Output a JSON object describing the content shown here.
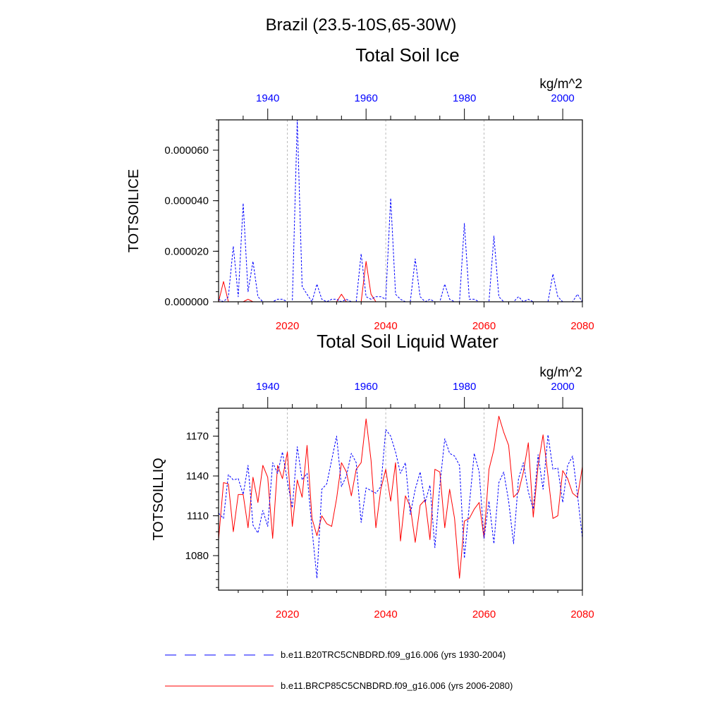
{
  "suptitle": "Brazil (23.5-10S,65-30W)",
  "colors": {
    "historical": "#0000ff",
    "future": "#ff0000",
    "axis": "#000000",
    "grid": "#aaaaaa"
  },
  "legend": {
    "items": [
      {
        "label": "b.e11.B20TRC5CNBDRD.f09_g16.006 (yrs 1930-2004)",
        "style": "dashed",
        "color": "#0000ff"
      },
      {
        "label": "b.e11.BRCP85C5CNBDRD.f09_g16.006 (yrs 2006-2080)",
        "style": "solid",
        "color": "#ff0000"
      }
    ]
  },
  "chart_data": [
    {
      "type": "line",
      "title": "Total Soil Ice",
      "units": "kg/m^2",
      "ylabel": "TOTSOILICE",
      "xlabel_bottom": "",
      "xlim_bottom": [
        2006,
        2080
      ],
      "xlim_top": [
        1930,
        2004
      ],
      "ylim": [
        0,
        7.2e-05
      ],
      "yticks": [
        0,
        2e-05,
        4e-05,
        6e-05
      ],
      "ytick_labels": [
        "0.000000",
        "0.000020",
        "0.000040",
        "0.000060"
      ],
      "xticks_bottom": [
        2020,
        2040,
        2060,
        2080
      ],
      "xtick_labels_bottom": [
        "2020",
        "2040",
        "2060",
        "2080"
      ],
      "xticks_top": [
        1940,
        1960,
        1980,
        2000
      ],
      "xtick_labels_top": [
        "1940",
        "1960",
        "1980",
        "2000"
      ],
      "grid_x": [
        2020,
        2040,
        2060
      ],
      "series": [
        {
          "name": "b.e11.B20TRC5CNBDRD.f09_g16.006 (yrs 1930-2004)",
          "axis": "top",
          "style": "dashed",
          "x": [
            1930,
            1931,
            1932,
            1933,
            1934,
            1935,
            1936,
            1937,
            1938,
            1939,
            1940,
            1941,
            1942,
            1943,
            1944,
            1945,
            1946,
            1947,
            1948,
            1949,
            1950,
            1951,
            1952,
            1953,
            1954,
            1955,
            1956,
            1957,
            1958,
            1959,
            1960,
            1961,
            1962,
            1963,
            1964,
            1965,
            1966,
            1967,
            1968,
            1969,
            1970,
            1971,
            1972,
            1973,
            1974,
            1975,
            1976,
            1977,
            1978,
            1979,
            1980,
            1981,
            1982,
            1983,
            1984,
            1985,
            1986,
            1987,
            1988,
            1989,
            1990,
            1991,
            1992,
            1993,
            1994,
            1995,
            1996,
            1997,
            1998,
            1999,
            2000,
            2001,
            2002,
            2003,
            2004
          ],
          "values": [
            1e-06,
            0,
            2e-06,
            2.2e-05,
            2e-06,
            3.9e-05,
            4e-06,
            1.6e-05,
            2e-06,
            0,
            0,
            0,
            1e-06,
            1e-06,
            0,
            0,
            7.2e-05,
            6e-06,
            3e-06,
            0,
            7e-06,
            1e-06,
            0,
            1e-06,
            1e-06,
            0,
            1e-06,
            0,
            0,
            1.9e-05,
            2e-06,
            1e-06,
            2e-06,
            2e-06,
            1e-06,
            4.1e-05,
            3e-06,
            1e-06,
            0,
            0,
            1.7e-05,
            2e-06,
            0,
            1e-06,
            0,
            0,
            7e-06,
            1e-06,
            0,
            0,
            3.1e-05,
            1e-06,
            1e-06,
            0,
            0,
            0,
            2.6e-05,
            2e-06,
            0,
            0,
            0,
            2e-06,
            0,
            1e-06,
            0,
            0,
            0,
            0,
            1.1e-05,
            2e-06,
            0,
            0,
            0,
            3e-06,
            0
          ]
        },
        {
          "name": "b.e11.BRCP85C5CNBDRD.f09_g16.006 (yrs 2006-2080)",
          "axis": "bottom",
          "style": "solid",
          "x": [
            2006,
            2007,
            2008,
            2009,
            2010,
            2011,
            2012,
            2013,
            2014,
            2015,
            2016,
            2017,
            2018,
            2019,
            2020,
            2021,
            2022,
            2023,
            2024,
            2025,
            2026,
            2027,
            2028,
            2029,
            2030,
            2031,
            2032,
            2033,
            2034,
            2035,
            2036,
            2037,
            2038,
            2039,
            2040,
            2041,
            2042,
            2043,
            2044,
            2045,
            2046,
            2047,
            2048,
            2049,
            2050,
            2051,
            2052,
            2053,
            2054,
            2055,
            2056,
            2057,
            2058,
            2059,
            2060,
            2061,
            2062,
            2063,
            2064,
            2065,
            2066,
            2067,
            2068,
            2069,
            2070,
            2071,
            2072,
            2073,
            2074,
            2075,
            2076,
            2077,
            2078,
            2079,
            2080
          ],
          "values": [
            0,
            8e-06,
            0,
            0,
            0,
            0,
            1e-06,
            0,
            0,
            0,
            0,
            0,
            0,
            0,
            0,
            0,
            0,
            0,
            0,
            0,
            0,
            0,
            0,
            0,
            0,
            3e-06,
            0,
            0,
            0,
            0,
            1.6e-05,
            3e-06,
            0,
            0,
            0,
            0,
            0,
            0,
            0,
            0,
            0,
            0,
            0,
            0,
            0,
            0,
            0,
            0,
            0,
            0,
            0,
            0,
            0,
            0,
            0,
            0,
            0,
            0,
            0,
            0,
            0,
            0,
            0,
            0,
            0,
            0,
            0,
            0,
            0,
            0,
            0,
            0,
            0,
            0,
            0
          ]
        }
      ]
    },
    {
      "type": "line",
      "title": "Total Soil Liquid Water",
      "units": "kg/m^2",
      "ylabel": "TOTSOILLIQ",
      "xlim_bottom": [
        2006,
        2080
      ],
      "xlim_top": [
        1930,
        2004
      ],
      "ylim": [
        1054,
        1191
      ],
      "yticks": [
        1080,
        1110,
        1140,
        1170
      ],
      "ytick_labels": [
        "1080",
        "1110",
        "1140",
        "1170"
      ],
      "xticks_bottom": [
        2020,
        2040,
        2060,
        2080
      ],
      "xtick_labels_bottom": [
        "2020",
        "2040",
        "2060",
        "2080"
      ],
      "xticks_top": [
        1940,
        1960,
        1980,
        2000
      ],
      "xtick_labels_top": [
        "1940",
        "1960",
        "1980",
        "2000"
      ],
      "grid_x": [
        2020,
        2040,
        2060
      ],
      "series": [
        {
          "name": "b.e11.B20TRC5CNBDRD.f09_g16.006 (yrs 1930-2004)",
          "axis": "top",
          "style": "dashed",
          "x": [
            1930,
            1931,
            1932,
            1933,
            1934,
            1935,
            1936,
            1937,
            1938,
            1939,
            1940,
            1941,
            1942,
            1943,
            1944,
            1945,
            1946,
            1947,
            1948,
            1949,
            1950,
            1951,
            1952,
            1953,
            1954,
            1955,
            1956,
            1957,
            1958,
            1959,
            1960,
            1961,
            1962,
            1963,
            1964,
            1965,
            1966,
            1967,
            1968,
            1969,
            1970,
            1971,
            1972,
            1973,
            1974,
            1975,
            1976,
            1977,
            1978,
            1979,
            1980,
            1981,
            1982,
            1983,
            1984,
            1985,
            1986,
            1987,
            1988,
            1989,
            1990,
            1991,
            1992,
            1993,
            1994,
            1995,
            1996,
            1997,
            1998,
            1999,
            2000,
            2001,
            2002,
            2003,
            2004
          ],
          "values": [
            1112,
            1108,
            1141,
            1137,
            1138,
            1126,
            1148,
            1103,
            1097,
            1114,
            1102,
            1150,
            1142,
            1158,
            1136,
            1116,
            1162,
            1137,
            1142,
            1100,
            1063,
            1130,
            1134,
            1152,
            1170,
            1132,
            1140,
            1157,
            1150,
            1105,
            1131,
            1129,
            1127,
            1132,
            1175,
            1170,
            1158,
            1142,
            1150,
            1111,
            1130,
            1143,
            1120,
            1133,
            1086,
            1133,
            1168,
            1157,
            1155,
            1148,
            1078,
            1118,
            1157,
            1143,
            1093,
            1121,
            1089,
            1135,
            1143,
            1121,
            1089,
            1138,
            1150,
            1128,
            1115,
            1156,
            1130,
            1171,
            1145,
            1146,
            1120,
            1148,
            1155,
            1126,
            1093
          ]
        },
        {
          "name": "b.e11.BRCP85C5CNBDRD.f09_g16.006 (yrs 2006-2080)",
          "axis": "bottom",
          "style": "solid",
          "x": [
            2006,
            2007,
            2008,
            2009,
            2010,
            2011,
            2012,
            2013,
            2014,
            2015,
            2016,
            2017,
            2018,
            2019,
            2020,
            2021,
            2022,
            2023,
            2024,
            2025,
            2026,
            2027,
            2028,
            2029,
            2030,
            2031,
            2032,
            2033,
            2034,
            2035,
            2036,
            2037,
            2038,
            2039,
            2040,
            2041,
            2042,
            2043,
            2044,
            2045,
            2046,
            2047,
            2048,
            2049,
            2050,
            2051,
            2052,
            2053,
            2054,
            2055,
            2056,
            2057,
            2058,
            2059,
            2060,
            2061,
            2062,
            2063,
            2064,
            2065,
            2066,
            2067,
            2068,
            2069,
            2070,
            2071,
            2072,
            2073,
            2074,
            2075,
            2076,
            2077,
            2078,
            2079,
            2080
          ],
          "values": [
            1092,
            1135,
            1134,
            1098,
            1126,
            1126,
            1101,
            1139,
            1120,
            1148,
            1139,
            1093,
            1148,
            1138,
            1158,
            1102,
            1137,
            1124,
            1163,
            1108,
            1095,
            1110,
            1104,
            1102,
            1123,
            1150,
            1143,
            1125,
            1145,
            1150,
            1183,
            1152,
            1101,
            1130,
            1145,
            1121,
            1150,
            1091,
            1125,
            1117,
            1090,
            1118,
            1122,
            1092,
            1145,
            1143,
            1101,
            1130,
            1108,
            1063,
            1106,
            1108,
            1115,
            1120,
            1093,
            1145,
            1160,
            1185,
            1173,
            1163,
            1124,
            1128,
            1143,
            1165,
            1109,
            1148,
            1171,
            1140,
            1108,
            1110,
            1144,
            1138,
            1127,
            1124,
            1147
          ]
        }
      ]
    }
  ]
}
